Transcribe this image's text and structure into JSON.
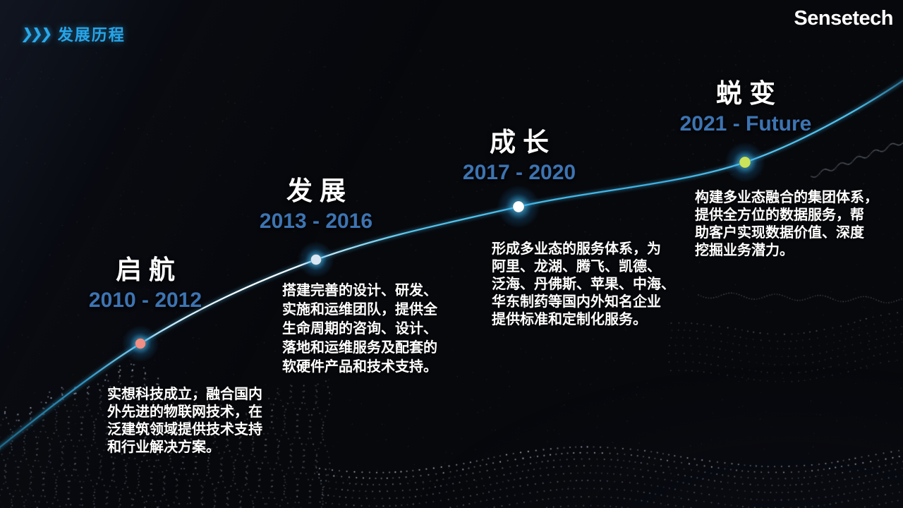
{
  "header": {
    "chevrons": "❯❯❯",
    "title": "发展历程"
  },
  "logo": {
    "text": "Sensetech"
  },
  "timeline": {
    "milestones": [
      {
        "title": "启航",
        "period": "2010 - 2012",
        "description": "实想科技成立，融合国内\n外先进的物联网技术，在\n泛建筑领域提供技术支持\n和行业解决方案。",
        "dot_color": "#ef8f86"
      },
      {
        "title": "发展",
        "period": "2013 - 2016",
        "description": "搭建完善的设计、研发、\n实施和运维团队，提供全\n生命周期的咨询、设计、\n落地和运维服务及配套的\n软硬件产品和技术支持。",
        "dot_color": "#d9e7f2"
      },
      {
        "title": "成长",
        "period": "2017 - 2020",
        "description": "形成多业态的服务体系，为\n阿里、龙湖、腾飞、凯德、\n泛海、丹佛斯、苹果、中海、\n华东制药等国内外知名企业\n提供标准和定制化服务。",
        "dot_color": "#ffffff"
      },
      {
        "title": "蜕变",
        "period": "2021 - Future",
        "description": "构建多业态融合的集团体系，\n提供全方位的数据服务，帮\n助客户实现数据价值、深度\n挖掘业务潜力。",
        "dot_color": "#cbe35a"
      }
    ]
  },
  "colors": {
    "accent_cyan": "#27A5E8",
    "period_blue": "#3D74B2",
    "line_cyan": "#4FC8F5",
    "background": "#07080C"
  }
}
